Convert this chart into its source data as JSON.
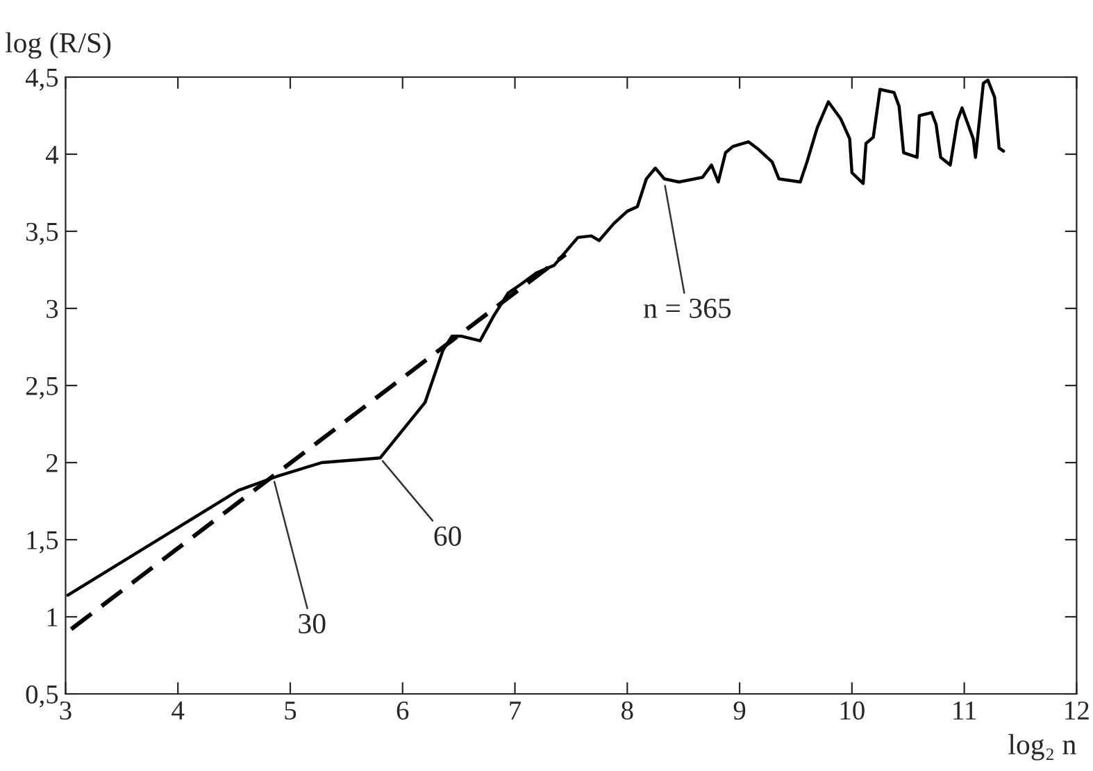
{
  "chart_data": {
    "type": "line",
    "xlabel": "log₂ n",
    "ylabel": "log (R/S)",
    "xlim": [
      3,
      12
    ],
    "xticks": [
      3,
      4,
      5,
      6,
      7,
      8,
      9,
      10,
      11,
      12
    ],
    "ylim": [
      0.5,
      4.5
    ],
    "yticks": [
      {
        "value": 0.5,
        "label": "0,5"
      },
      {
        "value": 1,
        "label": "1"
      },
      {
        "value": 1.5,
        "label": "1,5"
      },
      {
        "value": 2,
        "label": "2"
      },
      {
        "value": 2.5,
        "label": "2,5"
      },
      {
        "value": 3,
        "label": "3"
      },
      {
        "value": 3.5,
        "label": "3,5"
      },
      {
        "value": 4,
        "label": "4"
      },
      {
        "value": 4.5,
        "label": "4,5"
      }
    ],
    "grid": false,
    "legend": false,
    "series": [
      {
        "color": "#000000",
        "line_style": "solid",
        "x": [
          3.02,
          4.54,
          4.88,
          5.28,
          5.8,
          6.2,
          6.36,
          6.44,
          6.52,
          6.69,
          6.81,
          6.94,
          7.06,
          7.19,
          7.35,
          7.56,
          7.68,
          7.75,
          7.88,
          8.0,
          8.09,
          8.17,
          8.25,
          8.33,
          8.46,
          8.67,
          8.75,
          8.81,
          8.875,
          8.94,
          9.08,
          9.17,
          9.29,
          9.35,
          9.54,
          9.6,
          9.69,
          9.79,
          9.9,
          9.98,
          10.0,
          10.1,
          10.125,
          10.19,
          10.25,
          10.375,
          10.42,
          10.46,
          10.58,
          10.6,
          10.71,
          10.75,
          10.79,
          10.875,
          10.94,
          10.98,
          11.08,
          11.1,
          11.17,
          11.21,
          11.27,
          11.31,
          11.35
        ],
        "values": [
          1.14,
          1.82,
          1.91,
          2.0,
          2.03,
          2.39,
          2.73,
          2.82,
          2.82,
          2.79,
          2.95,
          3.1,
          3.16,
          3.23,
          3.28,
          3.46,
          3.47,
          3.44,
          3.55,
          3.63,
          3.66,
          3.84,
          3.91,
          3.84,
          3.82,
          3.85,
          3.93,
          3.82,
          4.01,
          4.05,
          4.08,
          4.03,
          3.95,
          3.84,
          3.82,
          3.95,
          4.17,
          4.34,
          4.23,
          4.1,
          3.88,
          3.81,
          4.07,
          4.11,
          4.42,
          4.4,
          4.31,
          4.01,
          3.98,
          4.25,
          4.27,
          4.19,
          3.98,
          3.93,
          4.22,
          4.3,
          4.1,
          3.98,
          4.46,
          4.48,
          4.37,
          4.04,
          4.02
        ]
      },
      {
        "color": "#000000",
        "line_style": "dashed",
        "x": [
          3.05,
          7.45
        ],
        "values": [
          0.92,
          3.35
        ]
      }
    ],
    "annotations": [
      {
        "text": "30",
        "x": 4.85,
        "y": 1.9
      },
      {
        "text": "60",
        "x": 5.8,
        "y": 2.03
      },
      {
        "text": "n = 365",
        "x": 8.33,
        "y": 3.82
      }
    ]
  }
}
